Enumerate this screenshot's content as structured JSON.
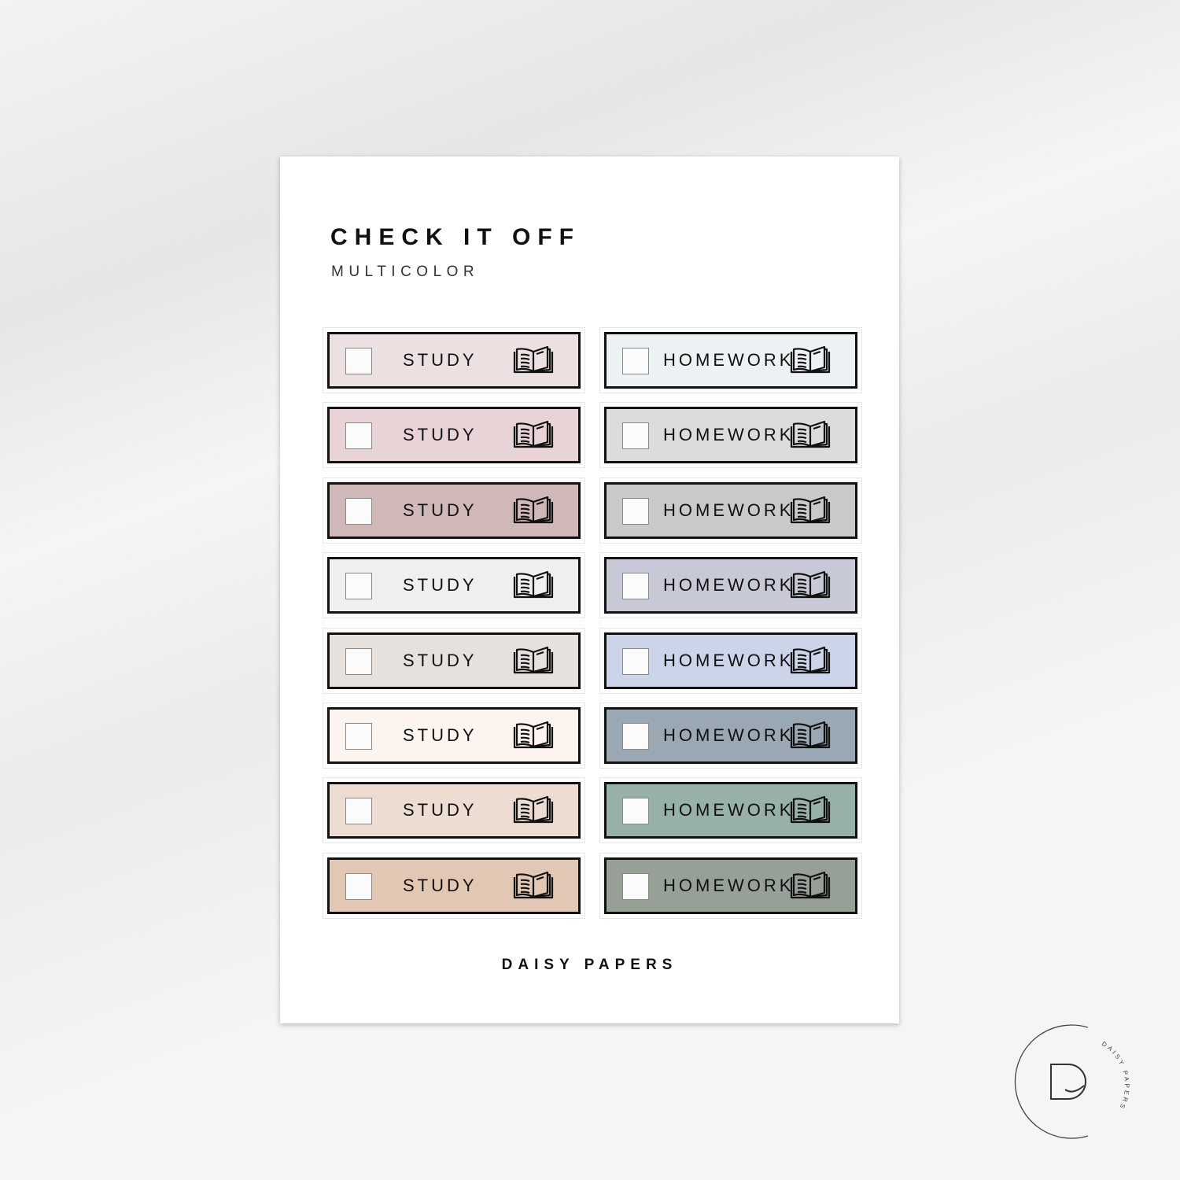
{
  "title": "CHECK IT OFF",
  "subtitle": "MULTICOLOR",
  "brand": "DAISY PAPERS",
  "logo_text": "DAISY PAPERS",
  "icon": "open-book-icon",
  "left_column": {
    "label": "STUDY",
    "colors": [
      "#ede0e0",
      "#e8d4d6",
      "#d1b8b8",
      "#efefee",
      "#e6e1dc",
      "#fdf4ef",
      "#eddcd1",
      "#e2c7b4"
    ]
  },
  "right_column": {
    "label": "HOMEWORK",
    "colors": [
      "#ecf1f4",
      "#dcdcdb",
      "#c9c9c9",
      "#c7cad6",
      "#cbd4e8",
      "#99a8b2",
      "#98b1a8",
      "#97a097"
    ]
  }
}
